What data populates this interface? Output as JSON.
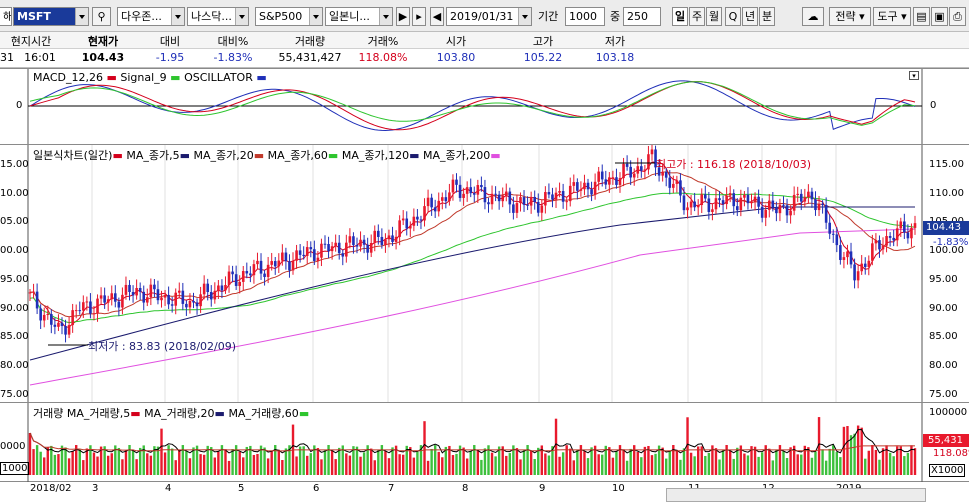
{
  "toolbar": {
    "mode": "해",
    "symbol": "MSFT",
    "exchange": "다우존...",
    "index1": "나스닥...",
    "index2": "S&P500",
    "index3": "일본니...",
    "date": "2019/01/31",
    "period_label": "기간",
    "period_value": "1000",
    "count_label": "중",
    "count_value": "250",
    "tf_day": "일",
    "tf_week": "주",
    "tf_month": "월",
    "tf_q": "Q",
    "tf_year": "년",
    "tf_min": "분",
    "strategy": "전략",
    "tools": "도구"
  },
  "quote": {
    "headers": [
      "현지시간",
      "현재가",
      "대비",
      "대비%",
      "거래량",
      "거래%",
      "시가",
      "고가",
      "저가"
    ],
    "time_prefix": "31",
    "time": "16:01",
    "price": "104.43",
    "change": "-1.95",
    "change_pct": "-1.83%",
    "volume": "55,431,427",
    "volume_pct": "118.08%",
    "open": "103.80",
    "high": "105.22",
    "low": "103.18"
  },
  "macd": {
    "legend": [
      "MACD_12,26",
      "Signal_9",
      "OSCILLATOR"
    ],
    "zero_label": "0",
    "zero_label_left": "0"
  },
  "price_pane": {
    "legend": [
      "일본식차트(일간)",
      "MA_종가,5",
      "MA_종가,20",
      "MA_종가,60",
      "MA_종가,120",
      "MA_종가,200"
    ],
    "high_note": "최고가 : 116.18 (2018/10/03)",
    "low_note": "최저가 : 83.83 (2018/02/09)",
    "right_ticks": [
      "115.00",
      "110.00",
      "105.00",
      "100.00",
      "95.00",
      "90.00",
      "85.00",
      "80.00",
      "75.00"
    ],
    "left_ticks": [
      "15.00",
      "10.00",
      "05.00",
      "00.00",
      "95.00",
      "90.00",
      "85.00",
      "80.00",
      "75.00"
    ],
    "current_tag": "104.43",
    "current_pct": "-1.83%"
  },
  "volume_pane": {
    "legend": [
      "거래량",
      "MA_거래량,5",
      "MA_거래량,20",
      "MA_거래량,60"
    ],
    "right_ticks": [
      "100000",
      "55,431",
      "118.08%"
    ],
    "left_ticks": [
      "0000",
      "1000"
    ],
    "unit": "X1000",
    "unit_left": "1000"
  },
  "xaxis": {
    "labels": [
      "2018/02",
      "3",
      "4",
      "5",
      "6",
      "7",
      "8",
      "9",
      "10",
      "11",
      "12",
      "2019"
    ]
  },
  "colors": {
    "up": "#e8192c",
    "down": "#1f2fb8",
    "ma5": "#d4001c",
    "ma20": "#1b1b6e",
    "ma60": "#c0392b",
    "ma120": "#2ec52e",
    "ma200": "#e050e0",
    "vol_up": "#e8192c",
    "vol_down": "#3dc03d"
  }
}
